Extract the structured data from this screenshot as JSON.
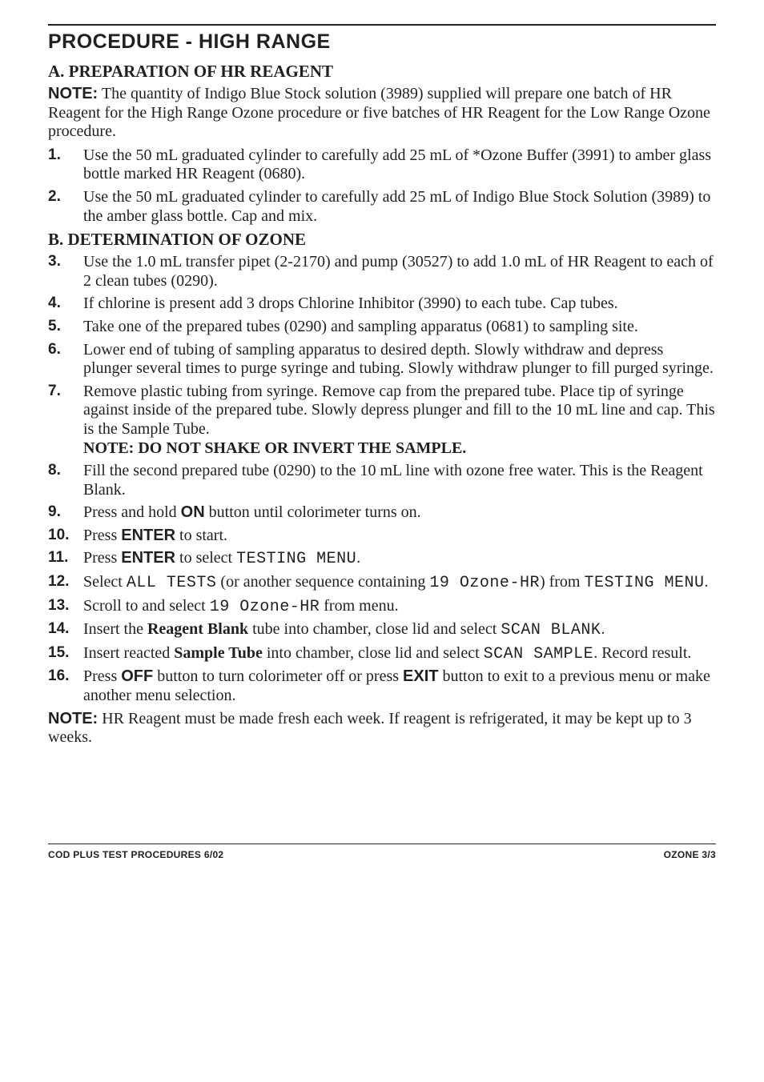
{
  "section_title": "PROCEDURE - HIGH RANGE",
  "sub_a": "A. PREPARATION OF HR REAGENT",
  "note_lead": "NOTE:",
  "note_a": " The quantity of Indigo Blue Stock solution (3989) supplied will prepare one batch of HR Reagent for the High Range Ozone procedure or five batches of HR Reagent for the Low Range Ozone procedure.",
  "step1": "Use the 50 mL graduated cylinder to carefully add 25 mL of *Ozone Buffer (3991) to amber glass bottle marked HR Reagent (0680).",
  "step2": "Use the 50 mL graduated cylinder to carefully add 25 mL of Indigo Blue Stock Solution (3989) to the amber glass bottle. Cap and mix.",
  "sub_b": "B. DETERMINATION OF OZONE",
  "step3": "Use the 1.0 mL transfer pipet (2-2170) and pump (30527) to add 1.0 mL of HR Reagent to each of 2 clean tubes (0290).",
  "step4": "If chlorine is present add 3 drops Chlorine Inhibitor (3990) to each tube. Cap tubes.",
  "step5": "Take one of the prepared tubes (0290) and sampling apparatus (0681) to sampling site.",
  "step6": "Lower end of tubing of sampling apparatus to desired depth. Slowly withdraw and depress plunger several times to purge syringe and tubing. Slowly withdraw plunger to fill purged syringe.",
  "step7": "Remove plastic tubing from syringe. Remove cap from the prepared tube. Place tip of syringe against inside of the prepared tube. Slowly depress plunger and fill to the 10 mL line and cap. This is the Sample Tube.",
  "step7_note": "NOTE: DO NOT SHAKE OR INVERT THE SAMPLE.",
  "step8": "Fill the second prepared tube (0290) to the 10 mL line with ozone free water. This is the Reagent Blank.",
  "step9_a": "Press and hold ",
  "step9_btn": "ON",
  "step9_b": " button until colorimeter turns on.",
  "step10_a": "Press ",
  "step10_btn": "ENTER",
  "step10_b": " to start.",
  "step11_a": "Press ",
  "step11_btn": "ENTER",
  "step11_b": " to select ",
  "step11_lcd": "TESTING MENU",
  "step11_c": ".",
  "step12_a": "Select ",
  "step12_lcd1": "ALL TESTS",
  "step12_b": " (or another sequence containing ",
  "step12_lcd2": "19 Ozone-HR",
  "step12_c": ") from ",
  "step12_lcd3": "TESTING MENU",
  "step12_d": ".",
  "step13_a": "Scroll to and select  ",
  "step13_lcd": "19 Ozone-HR",
  "step13_b": " from menu.",
  "step14_a": "Insert the ",
  "step14_bold": "Reagent Blank",
  "step14_b": " tube into chamber, close lid and select ",
  "step14_lcd": "SCAN BLANK",
  "step14_c": ".",
  "step15_a": "Insert reacted ",
  "step15_bold": "Sample Tube",
  "step15_b": " into chamber, close lid and select ",
  "step15_lcd": "SCAN SAMPLE",
  "step15_c": ". Record result.",
  "step16_a": "Press ",
  "step16_btn1": "OFF",
  "step16_b": " button to turn colorimeter off or press ",
  "step16_btn2": "EXIT",
  "step16_c": " button to exit to a previous menu or make another menu selection.",
  "final_note": " HR Reagent must be made fresh each week. If reagent is refrigerated, it may be kept up to 3 weeks.",
  "footer_left": "COD PLUS TEST PROCEDURES  6/02",
  "footer_right": "OZONE  3/3",
  "nums": {
    "n1": "1.",
    "n2": "2.",
    "n3": "3.",
    "n4": "4.",
    "n5": "5.",
    "n6": "6.",
    "n7": "7.",
    "n8": "8.",
    "n9": "9.",
    "n10": "10.",
    "n11": "11.",
    "n12": "12.",
    "n13": "13.",
    "n14": "14.",
    "n15": "15.",
    "n16": "16."
  }
}
